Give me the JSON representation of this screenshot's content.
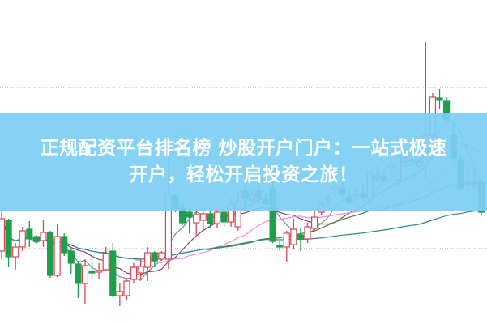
{
  "banner": {
    "line1": "正规配资平台排名榜 炒股开户门户：一站式极速",
    "line2": "开户，轻松开启投资之旅！",
    "background": "#7ccff3",
    "text_color": "#ffffff"
  },
  "chart_data": {
    "type": "candlestick",
    "title": "",
    "xlabel": "",
    "ylabel": "",
    "ylim": [
      0,
      40
    ],
    "grid": "horizontal dotted",
    "gridlines": [
      29.2,
      19.2,
      9.3
    ],
    "up_color": "#e0434f",
    "down_color": "#1f9e4e",
    "moving_averages": [
      {
        "period": 5,
        "color": "#7a8ea8"
      },
      {
        "period": 10,
        "color": "#8b3d6a"
      },
      {
        "period": 20,
        "color": "#e58fe0"
      },
      {
        "period": 30,
        "color": "#3d8a3d"
      },
      {
        "period": 60,
        "color": "#2e8a8e"
      }
    ],
    "candles": [
      [
        9.0,
        14.5,
        8.0,
        13.0
      ],
      [
        12.8,
        13.0,
        7.0,
        8.3
      ],
      [
        8.3,
        10.0,
        6.7,
        9.5
      ],
      [
        9.5,
        12.0,
        9.0,
        11.5
      ],
      [
        11.7,
        12.7,
        9.5,
        10.5
      ],
      [
        10.8,
        11.0,
        10.0,
        10.2
      ],
      [
        10.3,
        12.8,
        9.5,
        11.3
      ],
      [
        11.3,
        11.5,
        5.7,
        6.0
      ],
      [
        6.0,
        12.4,
        5.8,
        10.8
      ],
      [
        10.8,
        11.2,
        8.4,
        8.8
      ],
      [
        9.0,
        9.5,
        6.2,
        7.5
      ],
      [
        7.4,
        7.8,
        3.2,
        5.0
      ],
      [
        5.0,
        8.0,
        2.5,
        7.2
      ],
      [
        6.5,
        8.0,
        5.5,
        6.3
      ],
      [
        6.4,
        7.5,
        5.5,
        6.6
      ],
      [
        6.7,
        9.5,
        6.5,
        8.7
      ],
      [
        9.0,
        10.0,
        3.3,
        3.5
      ],
      [
        3.5,
        5.0,
        2.2,
        4.0
      ],
      [
        3.5,
        5.5,
        3.0,
        5.3
      ],
      [
        5.5,
        7.5,
        5.0,
        7.0
      ],
      [
        6.3,
        8.0,
        5.4,
        7.1
      ],
      [
        7.0,
        9.5,
        5.3,
        8.8
      ],
      [
        8.8,
        9.0,
        7.0,
        7.8
      ],
      [
        8.0,
        9.0,
        7.8,
        8.8
      ],
      [
        8.0,
        21.5,
        6.8,
        16.0
      ],
      [
        15.8,
        16.0,
        13.8,
        14.2
      ],
      [
        14.3,
        15.0,
        12.2,
        12.5
      ],
      [
        13.8,
        14.5,
        11.2,
        13.2
      ],
      [
        12.5,
        14.0,
        11.0,
        13.5
      ],
      [
        12.8,
        14.5,
        11.5,
        13.6
      ],
      [
        13.6,
        14.0,
        11.8,
        12.4
      ],
      [
        12.4,
        14.2,
        11.8,
        13.8
      ],
      [
        13.8,
        14.8,
        12.0,
        12.6
      ],
      [
        12.6,
        15.5,
        12.0,
        14.8
      ],
      [
        12.0,
        16.5,
        11.5,
        15.0
      ],
      [
        16.5,
        17.2,
        14.0,
        15.5
      ],
      [
        15.3,
        16.5,
        14.5,
        16.0
      ],
      [
        16.4,
        17.2,
        15.0,
        15.5
      ],
      [
        15.4,
        16.0,
        14.6,
        14.8
      ],
      [
        16.7,
        18.0,
        10.0,
        10.2
      ],
      [
        9.7,
        10.2,
        9.0,
        9.5
      ],
      [
        9.5,
        11.5,
        7.7,
        11.2
      ],
      [
        9.8,
        13.0,
        9.3,
        11.7
      ],
      [
        11.0,
        11.8,
        9.0,
        10.5
      ],
      [
        10.5,
        12.5,
        10.0,
        12.0
      ],
      [
        11.8,
        14.0,
        11.5,
        13.2
      ],
      [
        13.8,
        15.2,
        13.5,
        14.8
      ],
      [
        15.3,
        16.0,
        14.5,
        15.6
      ],
      [
        16.6,
        17.8,
        15.5,
        16.9
      ],
      [
        16.7,
        17.5,
        15.5,
        16.0
      ],
      [
        15.6,
        16.5,
        14.8,
        15.0
      ],
      [
        15.8,
        16.8,
        15.2,
        16.0
      ],
      [
        16.0,
        17.0,
        15.2,
        15.7
      ],
      [
        15.5,
        19.0,
        15.0,
        18.5
      ],
      [
        18.0,
        19.5,
        17.5,
        18.3
      ],
      [
        18.2,
        19.0,
        17.5,
        17.8
      ],
      [
        19.3,
        20.5,
        18.5,
        19.6
      ],
      [
        17.8,
        23.5,
        17.0,
        20.8
      ],
      [
        20.0,
        21.0,
        19.5,
        20.5
      ],
      [
        20.3,
        21.0,
        19.5,
        20.1
      ],
      [
        19.5,
        20.5,
        19.2,
        20.0
      ],
      [
        19.7,
        34.8,
        18.0,
        23.3
      ],
      [
        23.3,
        28.5,
        22.0,
        28.0
      ],
      [
        27.9,
        29.0,
        26.5,
        27.6
      ],
      [
        27.5,
        28.0,
        25.0,
        25.2
      ],
      [
        23.3,
        25.0,
        20.0,
        20.5
      ],
      [
        20.3,
        21.0,
        16.5,
        16.8
      ],
      [
        17.2,
        19.0,
        16.5,
        17.4
      ],
      [
        17.5,
        19.0,
        16.8,
        17.7
      ],
      [
        17.5,
        18.0,
        13.5,
        13.8
      ]
    ]
  }
}
